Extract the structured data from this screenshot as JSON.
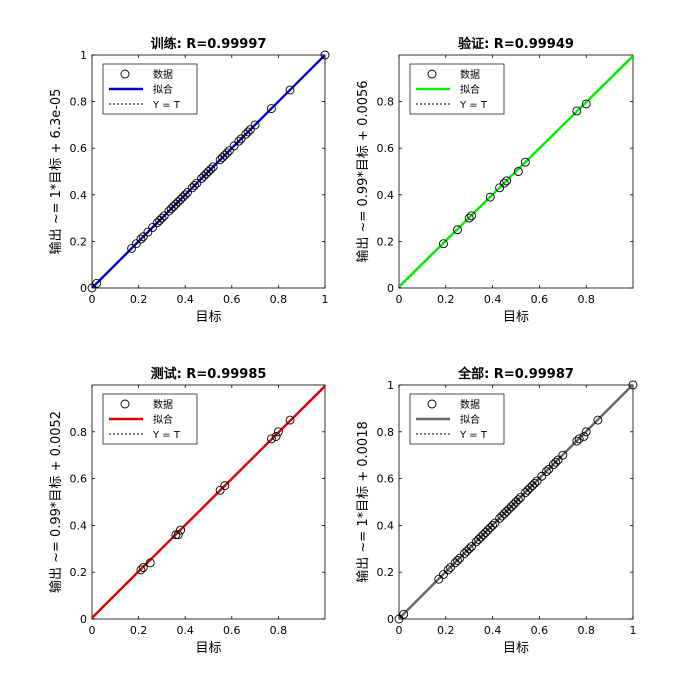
{
  "chart_data": [
    {
      "type": "scatter",
      "panel": "train",
      "title": "训练: R=0.99997",
      "xlabel": "目标",
      "ylabel": "输出 ~= 1*目标 + 6.3e-05",
      "xlim": [
        0,
        1
      ],
      "ylim": [
        0,
        1
      ],
      "xticks": [
        "0",
        "0.2",
        "0.4",
        "0.6",
        "0.8",
        "1"
      ],
      "yticks": [
        "0",
        "0.2",
        "0.4",
        "0.6",
        "0.8",
        "1"
      ],
      "fit_color": "#0000c0",
      "fit": {
        "slope": 1,
        "intercept": 6.3e-05
      },
      "legend": {
        "placement": "top-left",
        "entries": [
          "数据",
          "拟合",
          "Y = T"
        ]
      },
      "points": [
        [
          0.0,
          0.0
        ],
        [
          0.02,
          0.02
        ],
        [
          0.17,
          0.17
        ],
        [
          0.19,
          0.19
        ],
        [
          0.21,
          0.21
        ],
        [
          0.22,
          0.22
        ],
        [
          0.24,
          0.24
        ],
        [
          0.26,
          0.26
        ],
        [
          0.28,
          0.28
        ],
        [
          0.29,
          0.29
        ],
        [
          0.3,
          0.3
        ],
        [
          0.31,
          0.31
        ],
        [
          0.33,
          0.33
        ],
        [
          0.34,
          0.34
        ],
        [
          0.35,
          0.35
        ],
        [
          0.36,
          0.36
        ],
        [
          0.37,
          0.37
        ],
        [
          0.38,
          0.38
        ],
        [
          0.39,
          0.39
        ],
        [
          0.4,
          0.4
        ],
        [
          0.41,
          0.41
        ],
        [
          0.43,
          0.43
        ],
        [
          0.44,
          0.44
        ],
        [
          0.45,
          0.45
        ],
        [
          0.47,
          0.47
        ],
        [
          0.48,
          0.48
        ],
        [
          0.49,
          0.49
        ],
        [
          0.5,
          0.5
        ],
        [
          0.51,
          0.51
        ],
        [
          0.52,
          0.52
        ],
        [
          0.55,
          0.55
        ],
        [
          0.56,
          0.56
        ],
        [
          0.57,
          0.57
        ],
        [
          0.58,
          0.58
        ],
        [
          0.59,
          0.59
        ],
        [
          0.61,
          0.61
        ],
        [
          0.63,
          0.63
        ],
        [
          0.64,
          0.64
        ],
        [
          0.66,
          0.66
        ],
        [
          0.67,
          0.67
        ],
        [
          0.68,
          0.68
        ],
        [
          0.7,
          0.7
        ],
        [
          0.77,
          0.77
        ],
        [
          0.85,
          0.85
        ],
        [
          1.0,
          1.0
        ]
      ]
    },
    {
      "type": "scatter",
      "panel": "validation",
      "title": "验证: R=0.99949",
      "xlabel": "目标",
      "ylabel": "输出 ~= 0.99*目标 + 0.0056",
      "xlim": [
        0,
        1
      ],
      "ylim": [
        0,
        1
      ],
      "xticks": [
        "0",
        "0.2",
        "0.4",
        "0.6",
        "0.8"
      ],
      "yticks": [
        "0",
        "0.2",
        "0.4",
        "0.6",
        "0.8"
      ],
      "fit_color": "#00ee00",
      "fit": {
        "slope": 0.99,
        "intercept": 0.0056
      },
      "legend": {
        "placement": "top-left",
        "entries": [
          "数据",
          "拟合",
          "Y = T"
        ]
      },
      "points": [
        [
          0.19,
          0.19
        ],
        [
          0.25,
          0.25
        ],
        [
          0.3,
          0.3
        ],
        [
          0.31,
          0.31
        ],
        [
          0.39,
          0.39
        ],
        [
          0.43,
          0.43
        ],
        [
          0.45,
          0.45
        ],
        [
          0.46,
          0.46
        ],
        [
          0.51,
          0.5
        ],
        [
          0.54,
          0.54
        ],
        [
          0.76,
          0.76
        ],
        [
          0.8,
          0.79
        ]
      ]
    },
    {
      "type": "scatter",
      "panel": "test",
      "title": "测试: R=0.99985",
      "xlabel": "目标",
      "ylabel": "输出 ~= 0.99*目标 + 0.0052",
      "xlim": [
        0,
        1
      ],
      "ylim": [
        0,
        1
      ],
      "xticks": [
        "0",
        "0.2",
        "0.4",
        "0.6",
        "0.8"
      ],
      "yticks": [
        "0",
        "0.2",
        "0.4",
        "0.6",
        "0.8"
      ],
      "fit_color": "#e00000",
      "fit": {
        "slope": 0.99,
        "intercept": 0.0052
      },
      "legend": {
        "placement": "top-left",
        "entries": [
          "数据",
          "拟合",
          "Y = T"
        ]
      },
      "points": [
        [
          0.21,
          0.21
        ],
        [
          0.22,
          0.22
        ],
        [
          0.25,
          0.24
        ],
        [
          0.36,
          0.36
        ],
        [
          0.37,
          0.36
        ],
        [
          0.38,
          0.38
        ],
        [
          0.55,
          0.55
        ],
        [
          0.57,
          0.57
        ],
        [
          0.77,
          0.77
        ],
        [
          0.79,
          0.78
        ],
        [
          0.8,
          0.8
        ],
        [
          0.85,
          0.85
        ]
      ]
    },
    {
      "type": "scatter",
      "panel": "all",
      "title": "全部: R=0.99987",
      "xlabel": "目标",
      "ylabel": "输出 ~= 1*目标 + 0.0018",
      "xlim": [
        0,
        1
      ],
      "ylim": [
        0,
        1
      ],
      "xticks": [
        "0",
        "0.2",
        "0.4",
        "0.6",
        "0.8",
        "1"
      ],
      "yticks": [
        "0",
        "0.2",
        "0.4",
        "0.6",
        "0.8",
        "1"
      ],
      "fit_color": "#666666",
      "fit": {
        "slope": 1,
        "intercept": 0.0018
      },
      "legend": {
        "placement": "top-left",
        "entries": [
          "数据",
          "拟合",
          "Y = T"
        ]
      },
      "points": [
        [
          0.0,
          0.0
        ],
        [
          0.02,
          0.02
        ],
        [
          0.17,
          0.17
        ],
        [
          0.19,
          0.19
        ],
        [
          0.21,
          0.21
        ],
        [
          0.22,
          0.22
        ],
        [
          0.24,
          0.24
        ],
        [
          0.25,
          0.25
        ],
        [
          0.26,
          0.26
        ],
        [
          0.28,
          0.28
        ],
        [
          0.29,
          0.29
        ],
        [
          0.3,
          0.3
        ],
        [
          0.31,
          0.31
        ],
        [
          0.33,
          0.33
        ],
        [
          0.34,
          0.34
        ],
        [
          0.35,
          0.35
        ],
        [
          0.36,
          0.36
        ],
        [
          0.37,
          0.37
        ],
        [
          0.38,
          0.38
        ],
        [
          0.39,
          0.39
        ],
        [
          0.4,
          0.4
        ],
        [
          0.41,
          0.41
        ],
        [
          0.43,
          0.43
        ],
        [
          0.44,
          0.44
        ],
        [
          0.45,
          0.45
        ],
        [
          0.46,
          0.46
        ],
        [
          0.47,
          0.47
        ],
        [
          0.48,
          0.48
        ],
        [
          0.49,
          0.49
        ],
        [
          0.5,
          0.5
        ],
        [
          0.51,
          0.51
        ],
        [
          0.52,
          0.52
        ],
        [
          0.54,
          0.54
        ],
        [
          0.55,
          0.55
        ],
        [
          0.56,
          0.56
        ],
        [
          0.57,
          0.57
        ],
        [
          0.58,
          0.58
        ],
        [
          0.59,
          0.59
        ],
        [
          0.61,
          0.61
        ],
        [
          0.63,
          0.63
        ],
        [
          0.64,
          0.64
        ],
        [
          0.66,
          0.66
        ],
        [
          0.67,
          0.67
        ],
        [
          0.68,
          0.68
        ],
        [
          0.7,
          0.7
        ],
        [
          0.76,
          0.76
        ],
        [
          0.77,
          0.77
        ],
        [
          0.79,
          0.78
        ],
        [
          0.8,
          0.8
        ],
        [
          0.85,
          0.85
        ],
        [
          1.0,
          1.0
        ]
      ]
    }
  ]
}
